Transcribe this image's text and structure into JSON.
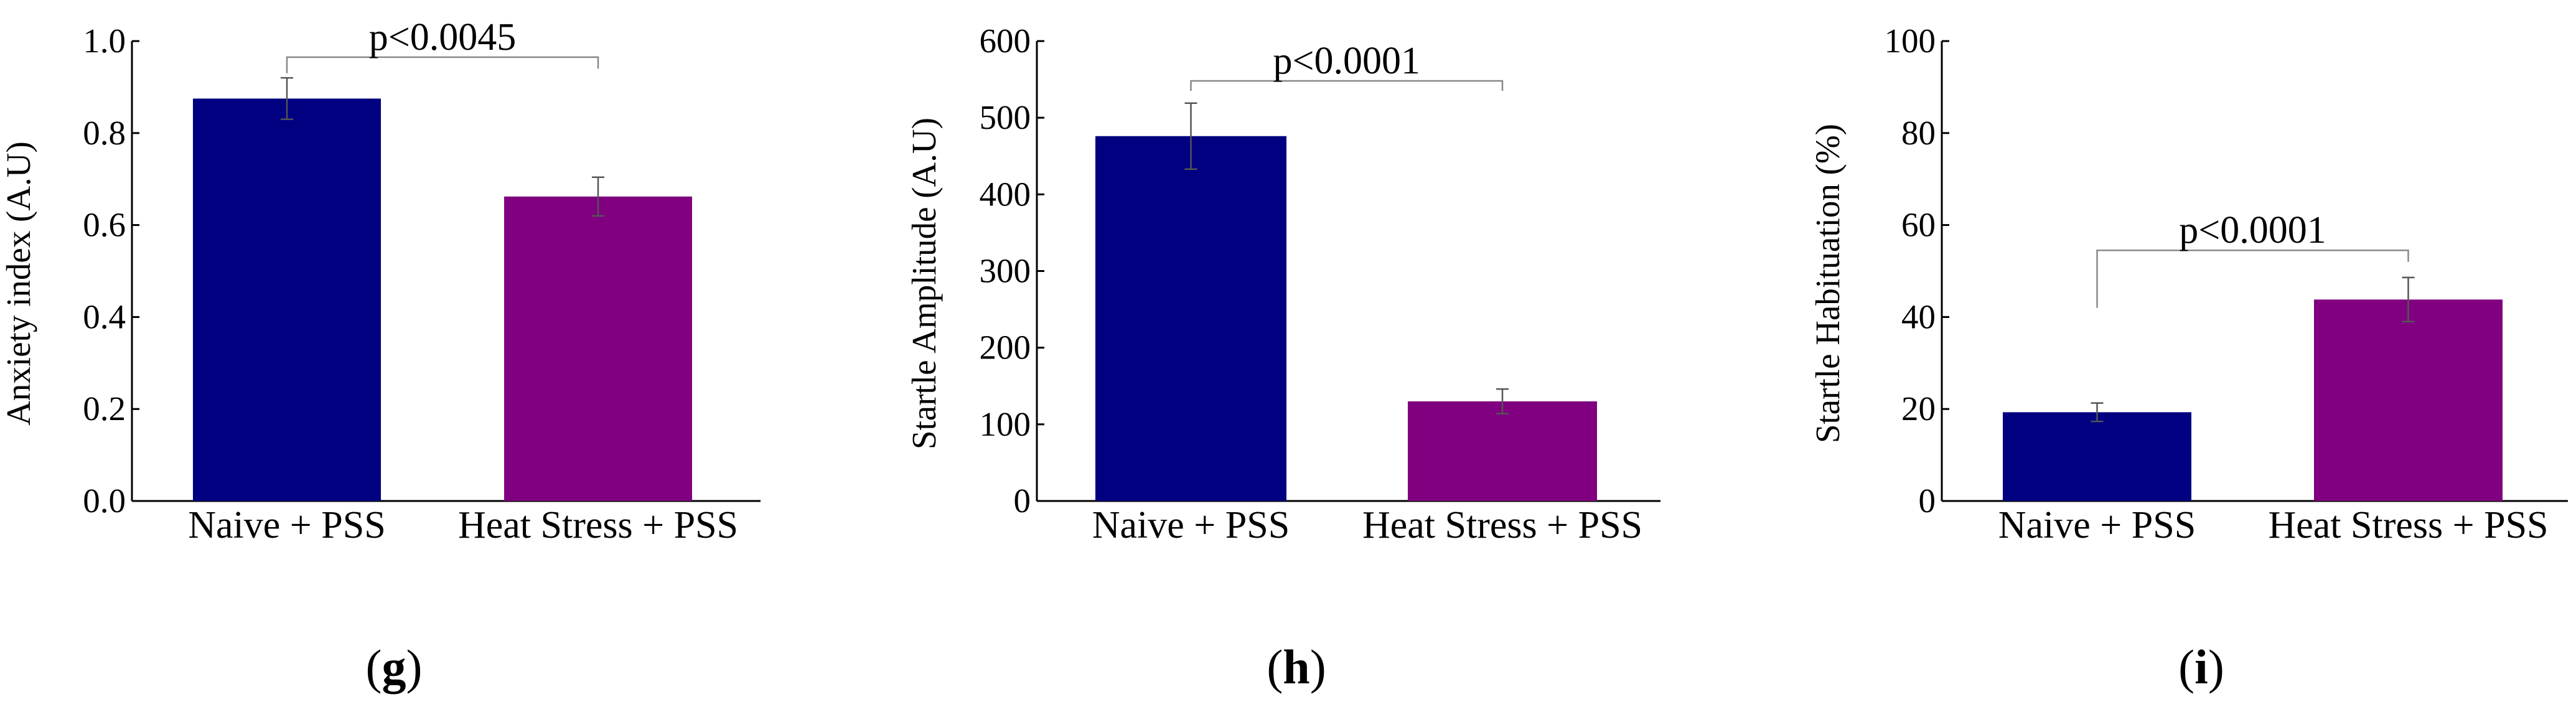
{
  "chart_data": [
    {
      "type": "bar",
      "panel": "(g)",
      "panel_letter": "g",
      "ylabel": "Anxiety index (A.U)",
      "categories": [
        "Naive + PSS",
        "Heat Stress + PSS"
      ],
      "values": [
        0.875,
        0.662
      ],
      "errors": [
        0.045,
        0.042
      ],
      "ylim": [
        0.0,
        1.0
      ],
      "yticks": [
        "0.0",
        "0.2",
        "0.4",
        "0.6",
        "0.8",
        "1.0"
      ],
      "grid": false,
      "colors": [
        "#000080",
        "#800080"
      ],
      "significance": {
        "label": "p<0.0045",
        "y": 0.965,
        "left_top": 0.93,
        "right_top": 0.94
      }
    },
    {
      "type": "bar",
      "panel": "(h)",
      "panel_letter": "h",
      "ylabel": "Startle Amplitude (A.U)",
      "categories": [
        "Naive + PSS",
        "Heat Stress + PSS"
      ],
      "values": [
        476,
        130
      ],
      "errors": [
        43,
        16
      ],
      "ylim": [
        0,
        600
      ],
      "yticks": [
        "0",
        "100",
        "200",
        "300",
        "400",
        "500",
        "600"
      ],
      "grid": false,
      "colors": [
        "#000080",
        "#800080"
      ],
      "significance": {
        "label": "p<0.0001",
        "y": 548,
        "left_top": 535,
        "right_top": 535
      }
    },
    {
      "type": "bar",
      "panel": "(i)",
      "panel_letter": "i",
      "ylabel": "Startle Habituation (%)",
      "categories": [
        "Naive + PSS",
        "Heat Stress + PSS"
      ],
      "values": [
        19.3,
        43.8
      ],
      "errors": [
        2.0,
        4.8
      ],
      "ylim": [
        0,
        100
      ],
      "yticks": [
        "0",
        "20",
        "40",
        "60",
        "80",
        "100"
      ],
      "grid": false,
      "colors": [
        "#000080",
        "#800080"
      ],
      "significance": {
        "label": "p<0.0001",
        "y": 54.5,
        "left_top": 42,
        "right_top": 52
      }
    }
  ]
}
